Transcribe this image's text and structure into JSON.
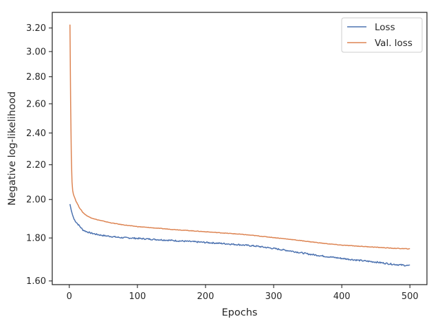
{
  "chart_data": {
    "type": "line",
    "xlabel": "Epochs",
    "ylabel": "Negative log-likelihood",
    "yscale": "log",
    "xlim": [
      -25,
      525
    ],
    "ylim": [
      1.584,
      3.34
    ],
    "x_ticks": [
      0,
      100,
      200,
      300,
      400,
      500
    ],
    "x_tick_labels": [
      "0",
      "100",
      "200",
      "300",
      "400",
      "500"
    ],
    "y_ticks": [
      1.6,
      1.8,
      2.0,
      2.2,
      2.4,
      2.6,
      2.8,
      3.0,
      3.2
    ],
    "y_tick_labels": [
      "1.60",
      "1.80",
      "2.00",
      "2.20",
      "2.40",
      "2.60",
      "2.80",
      "3.00",
      "3.20"
    ],
    "grid": false,
    "legend_position": "top-right",
    "series": [
      {
        "name": "Loss",
        "color": "#4c72b0",
        "x": [
          1,
          3,
          5,
          7,
          10,
          15,
          20,
          25,
          30,
          40,
          50,
          60,
          75,
          90,
          100,
          125,
          150,
          175,
          200,
          225,
          250,
          275,
          300,
          325,
          350,
          375,
          400,
          425,
          450,
          475,
          500
        ],
        "y": [
          1.975,
          1.94,
          1.915,
          1.895,
          1.88,
          1.86,
          1.84,
          1.832,
          1.826,
          1.818,
          1.812,
          1.808,
          1.802,
          1.8,
          1.798,
          1.793,
          1.788,
          1.783,
          1.778,
          1.773,
          1.767,
          1.76,
          1.749,
          1.737,
          1.723,
          1.712,
          1.702,
          1.693,
          1.685,
          1.675,
          1.668
        ]
      },
      {
        "name": "Val. loss",
        "color": "#dd8452",
        "x": [
          1,
          2,
          3,
          4,
          5,
          6,
          8,
          10,
          15,
          20,
          25,
          30,
          40,
          50,
          60,
          75,
          90,
          100,
          125,
          150,
          175,
          200,
          225,
          250,
          275,
          300,
          325,
          350,
          375,
          400,
          425,
          450,
          475,
          500
        ],
        "y": [
          3.23,
          2.6,
          2.25,
          2.1,
          2.05,
          2.03,
          2.01,
          1.99,
          1.955,
          1.93,
          1.915,
          1.905,
          1.893,
          1.885,
          1.877,
          1.868,
          1.861,
          1.857,
          1.85,
          1.843,
          1.837,
          1.831,
          1.825,
          1.819,
          1.811,
          1.802,
          1.793,
          1.783,
          1.773,
          1.765,
          1.76,
          1.755,
          1.75,
          1.747
        ]
      }
    ]
  }
}
